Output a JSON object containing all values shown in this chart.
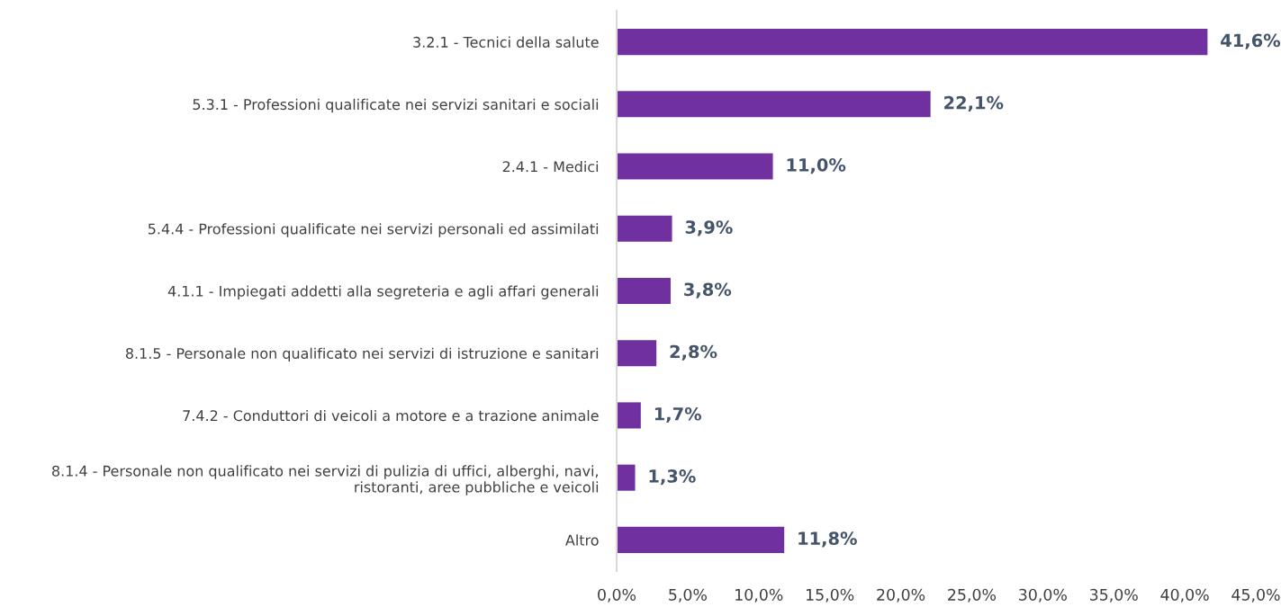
{
  "chart_data": {
    "type": "bar",
    "orientation": "horizontal",
    "categories": [
      "3.2.1 - Tecnici della salute",
      "5.3.1 - Professioni qualificate nei servizi sanitari e sociali",
      "2.4.1 - Medici",
      "5.4.4 - Professioni qualificate nei servizi personali ed assimilati",
      "4.1.1 - Impiegati addetti alla segreteria e agli affari generali",
      "8.1.5 - Personale non qualificato nei servizi di istruzione e sanitari",
      "7.4.2 - Conduttori di veicoli a motore e a trazione animale",
      "8.1.4 - Personale non qualificato nei servizi di pulizia di uffici, alberghi, navi,\nristoranti, aree pubbliche e veicoli",
      "Altro"
    ],
    "values": [
      41.6,
      22.1,
      11.0,
      3.9,
      3.8,
      2.8,
      1.7,
      1.3,
      11.8
    ],
    "value_labels": [
      "41,6%",
      "22,1%",
      "11,0%",
      "3,9%",
      "3,8%",
      "2,8%",
      "1,7%",
      "1,3%",
      "11,8%"
    ],
    "color": "#7030a0",
    "xlim": [
      0,
      45
    ],
    "xticks": [
      {
        "value": 0,
        "label": "0,0%"
      },
      {
        "value": 5,
        "label": "5,0%"
      },
      {
        "value": 10,
        "label": "10,0%"
      },
      {
        "value": 15,
        "label": "15,0%"
      },
      {
        "value": 20,
        "label": "20,0%"
      },
      {
        "value": 25,
        "label": "25,0%"
      },
      {
        "value": 30,
        "label": "30,0%"
      },
      {
        "value": 35,
        "label": "35,0%"
      },
      {
        "value": 40,
        "label": "40,0%"
      },
      {
        "value": 45,
        "label": "45,0%"
      }
    ],
    "grid": false,
    "legend": false
  }
}
